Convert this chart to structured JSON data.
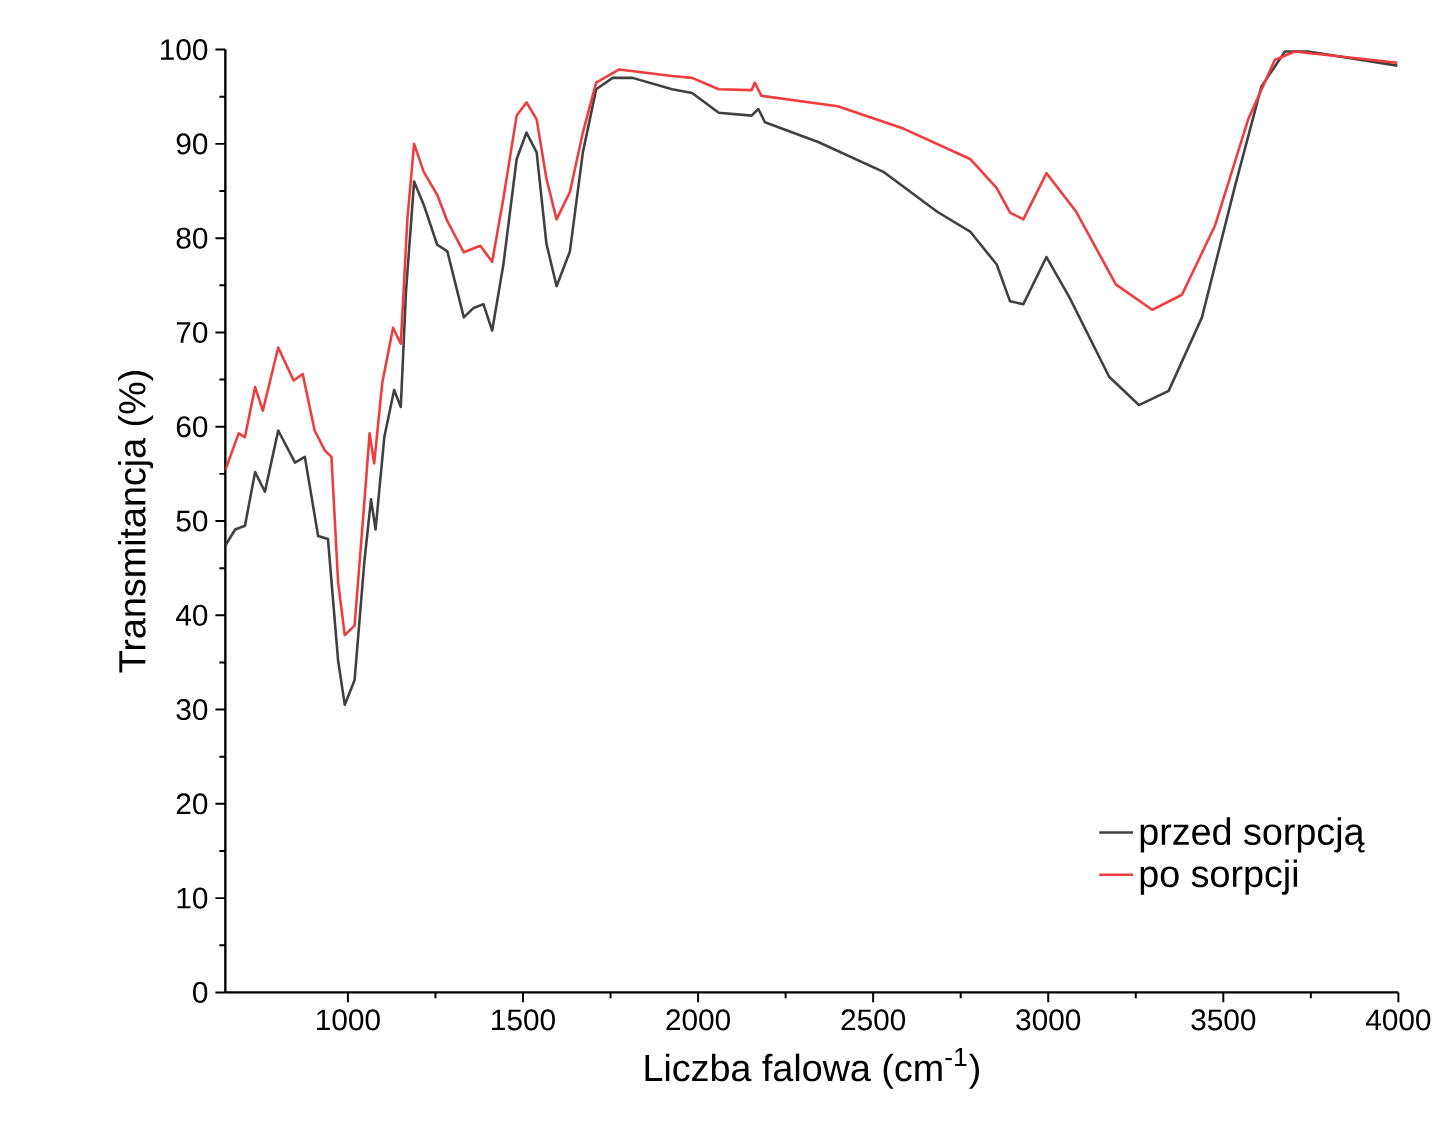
{
  "chart_data": {
    "type": "line",
    "xlabel": "Liczba falowa (cm$^{-1}$)",
    "ylabel": "Transmitancja (%)",
    "xlim": [
      650,
      4000
    ],
    "ylim": [
      0,
      100
    ],
    "xticks": [
      1000,
      1500,
      2000,
      2500,
      3000,
      3500,
      4000
    ],
    "yticks": [
      0,
      10,
      20,
      30,
      40,
      50,
      60,
      70,
      80,
      90,
      100
    ],
    "legend": "bottom right",
    "series": [
      {
        "name": "przed sorpcją",
        "color": "#404040",
        "x": [
          650,
          678,
          706,
          735,
          763,
          801,
          849,
          877,
          915,
          943,
          972,
          991,
          1019,
          1047,
          1066,
          1079,
          1104,
          1132,
          1151,
          1166,
          1189,
          1217,
          1255,
          1284,
          1331,
          1359,
          1387,
          1412,
          1444,
          1482,
          1510,
          1539,
          1567,
          1596,
          1634,
          1671,
          1709,
          1756,
          1813,
          1926,
          1983,
          2059,
          2153,
          2172,
          2191,
          2343,
          2531,
          2683,
          2777,
          2853,
          2891,
          2929,
          2995,
          3061,
          3174,
          3259,
          3344,
          3439,
          3534,
          3609,
          3676,
          3742,
          3997
        ],
        "values": [
          47.4,
          49.1,
          49.5,
          55.2,
          53.1,
          59.6,
          56.2,
          56.8,
          48.4,
          48.1,
          35.2,
          30.5,
          33.1,
          45.7,
          52.3,
          49.1,
          58.9,
          63.9,
          62.1,
          74.4,
          86,
          83.5,
          79.3,
          78.6,
          71.6,
          72.6,
          73,
          70.2,
          77.2,
          88.4,
          91.2,
          89.1,
          79.4,
          74.9,
          78.6,
          89.1,
          95.8,
          97,
          97,
          95.8,
          95.4,
          93.3,
          93,
          93.7,
          92.3,
          90.2,
          87,
          82.8,
          80.7,
          77.2,
          73.3,
          73,
          78,
          73.7,
          65.3,
          62.3,
          63.8,
          71.6,
          85.6,
          96.1,
          99.8,
          99.8,
          98.3
        ]
      },
      {
        "name": "po sorpcji",
        "color": "#f03c3c",
        "x": [
          650,
          688,
          706,
          735,
          757,
          801,
          845,
          871,
          905,
          934,
          953,
          972,
          991,
          1019,
          1047,
          1062,
          1075,
          1098,
          1129,
          1151,
          1170,
          1189,
          1217,
          1255,
          1284,
          1331,
          1378,
          1412,
          1444,
          1482,
          1510,
          1539,
          1567,
          1596,
          1634,
          1671,
          1709,
          1775,
          1926,
          1983,
          2059,
          2153,
          2162,
          2181,
          2399,
          2588,
          2777,
          2853,
          2891,
          2929,
          2995,
          3080,
          3193,
          3297,
          3382,
          3477,
          3571,
          3647,
          3704,
          3997
        ],
        "values": [
          55.4,
          59.3,
          58.9,
          64.2,
          61.7,
          68.4,
          64.9,
          65.6,
          59.6,
          57.5,
          56.8,
          43.5,
          37.9,
          38.9,
          52,
          59.3,
          56.1,
          64.6,
          70.5,
          68.8,
          82.1,
          90,
          87,
          84.6,
          81.8,
          78.5,
          79.2,
          77.5,
          84.2,
          93,
          94.4,
          92.6,
          86.3,
          82,
          84.9,
          91.2,
          96.5,
          97.9,
          97.2,
          97,
          95.8,
          95.7,
          96.5,
          95.1,
          94,
          91.6,
          88.4,
          85.3,
          82.7,
          82,
          86.9,
          82.8,
          75.1,
          72.4,
          74,
          81.4,
          92.6,
          98.9,
          99.8,
          98.6
        ]
      }
    ]
  }
}
